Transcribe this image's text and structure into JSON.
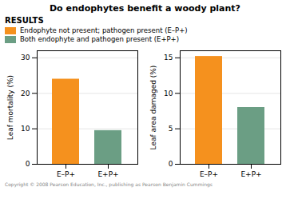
{
  "title": "Do endophytes benefit a woody plant?",
  "annotations": [
    "RESULTS",
    "Copyright © 2008 Pearson Education, Inc., publishing as Pearson Benjamin Cummings"
  ],
  "legend_entries": [
    {
      "name": "Endophyte not present; pathogen present (E–P+)",
      "color": "#f5911e"
    },
    {
      "name": "Both endophyte and pathogen present (E+P+)",
      "color": "#6b9e84"
    }
  ],
  "chart_data": [
    {
      "type": "bar",
      "ylabel": "Leaf mortality (%)",
      "categories": [
        "E–P+",
        "E+P+"
      ],
      "values": [
        24,
        9.5
      ],
      "colors": [
        "#f5911e",
        "#6b9e84"
      ],
      "ylim": [
        0,
        32
      ],
      "yticks": [
        0,
        10,
        20,
        30
      ],
      "grid": true
    },
    {
      "type": "bar",
      "ylabel": "Leaf area damaged (%)",
      "categories": [
        "E–P+",
        "E+P+"
      ],
      "values": [
        15.2,
        8.0
      ],
      "colors": [
        "#f5911e",
        "#6b9e84"
      ],
      "ylim": [
        0,
        16
      ],
      "yticks": [
        0,
        5,
        10,
        15
      ],
      "grid": true
    }
  ]
}
